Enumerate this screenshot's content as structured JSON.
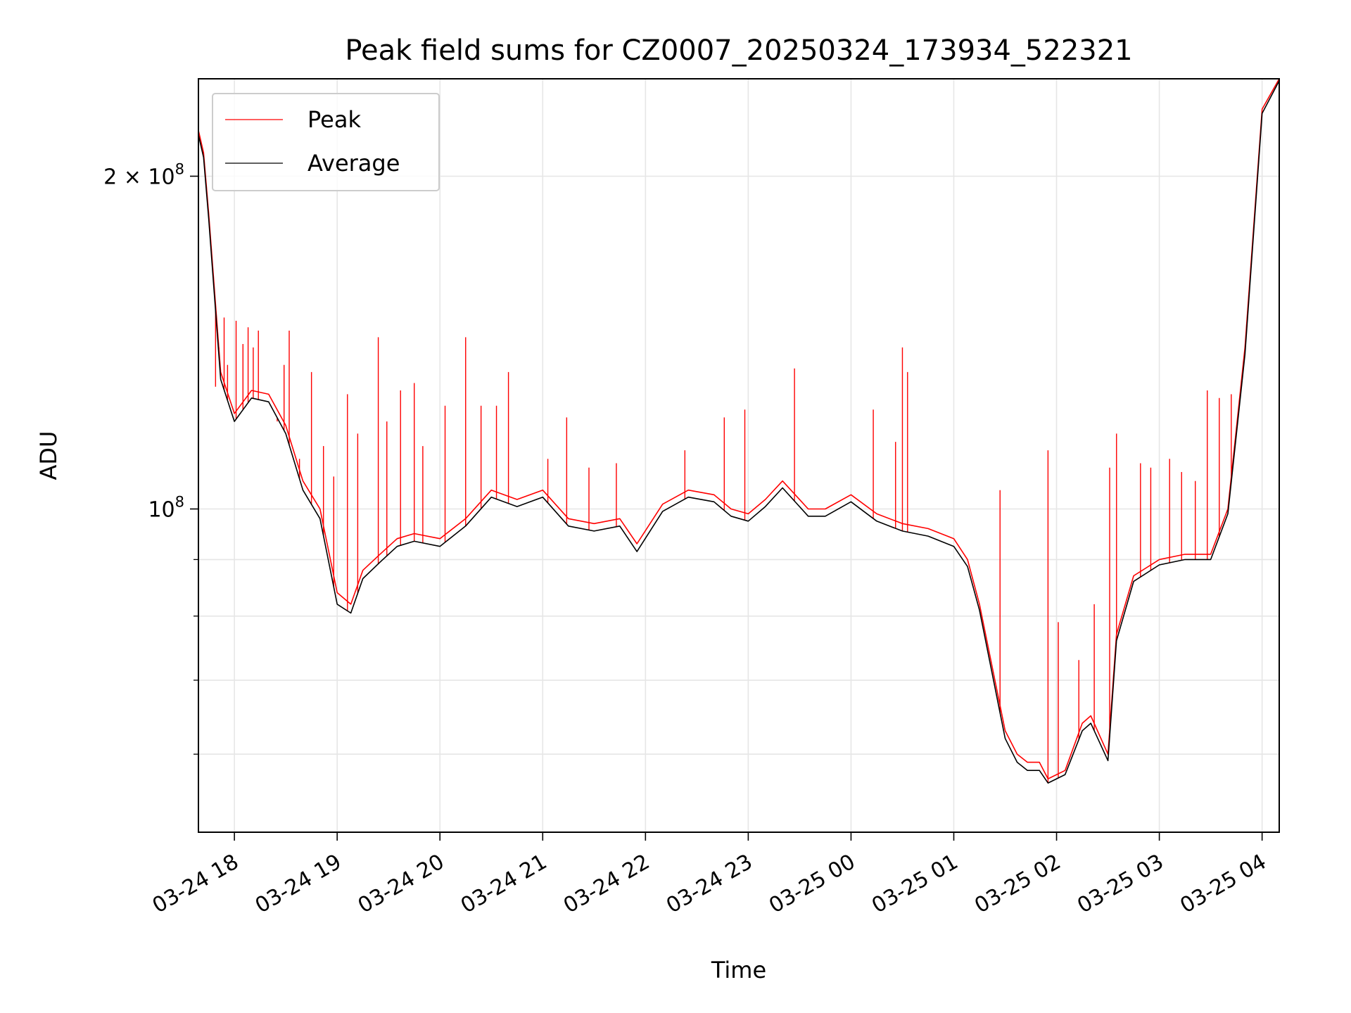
{
  "chart_data": {
    "type": "line",
    "title": "Peak field sums for CZ0007_20250324_173934_522321",
    "xlabel": "Time",
    "ylabel": "ADU",
    "y_scale": "log",
    "xlim": [
      "2025-03-24 17:39",
      "2025-03-25 04:10"
    ],
    "ylim": [
      51000000,
      245000000
    ],
    "x_ticks": [
      "03-24 18",
      "03-24 19",
      "03-24 20",
      "03-24 21",
      "03-24 22",
      "03-24 23",
      "03-25 00",
      "03-25 01",
      "03-25 02",
      "03-25 03",
      "03-25 04"
    ],
    "x_tick_times": [
      "2025-03-24 18:00",
      "2025-03-24 19:00",
      "2025-03-24 20:00",
      "2025-03-24 21:00",
      "2025-03-24 22:00",
      "2025-03-24 23:00",
      "2025-03-25 00:00",
      "2025-03-25 01:00",
      "2025-03-25 02:00",
      "2025-03-25 03:00",
      "2025-03-25 04:00"
    ],
    "y_ticks": [
      {
        "value": 100000000,
        "label": "10",
        "exp": "8"
      },
      {
        "value": 200000000,
        "label": "2 × 10",
        "exp": "8"
      }
    ],
    "y_minor_ticks": [
      60000000,
      70000000,
      80000000,
      90000000
    ],
    "grid": true,
    "legend_position": "top-left",
    "series": [
      {
        "name": "Peak",
        "color": "#ff0000",
        "line_width": 1,
        "x": [
          "2025-03-24 17:39",
          "2025-03-24 17:42",
          "2025-03-24 17:45",
          "2025-03-24 17:52",
          "2025-03-24 18:00",
          "2025-03-24 18:10",
          "2025-03-24 18:20",
          "2025-03-24 18:30",
          "2025-03-24 18:40",
          "2025-03-24 18:50",
          "2025-03-24 19:00",
          "2025-03-24 19:08",
          "2025-03-24 19:15",
          "2025-03-24 19:25",
          "2025-03-24 19:35",
          "2025-03-24 19:45",
          "2025-03-24 20:00",
          "2025-03-24 20:15",
          "2025-03-24 20:30",
          "2025-03-24 20:45",
          "2025-03-24 21:00",
          "2025-03-24 21:15",
          "2025-03-24 21:30",
          "2025-03-24 21:45",
          "2025-03-24 21:55",
          "2025-03-24 22:10",
          "2025-03-24 22:25",
          "2025-03-24 22:40",
          "2025-03-24 22:50",
          "2025-03-24 23:00",
          "2025-03-24 23:10",
          "2025-03-24 23:20",
          "2025-03-24 23:35",
          "2025-03-24 23:45",
          "2025-03-25 00:00",
          "2025-03-25 00:15",
          "2025-03-25 00:30",
          "2025-03-25 00:45",
          "2025-03-25 01:00",
          "2025-03-25 01:08",
          "2025-03-25 01:15",
          "2025-03-25 01:30",
          "2025-03-25 01:37",
          "2025-03-25 01:43",
          "2025-03-25 01:50",
          "2025-03-25 01:55",
          "2025-03-25 02:05",
          "2025-03-25 02:15",
          "2025-03-25 02:20",
          "2025-03-25 02:30",
          "2025-03-25 02:35",
          "2025-03-25 02:45",
          "2025-03-25 03:00",
          "2025-03-25 03:15",
          "2025-03-25 03:30",
          "2025-03-25 03:40",
          "2025-03-25 03:50",
          "2025-03-25 04:00",
          "2025-03-25 04:10"
        ],
        "values": [
          220000000,
          210000000,
          185000000,
          133000000,
          122000000,
          128000000,
          127000000,
          119000000,
          106000000,
          100000000,
          84000000,
          82000000,
          88000000,
          91000000,
          94000000,
          95000000,
          94000000,
          98000000,
          104000000,
          102000000,
          104000000,
          98000000,
          97000000,
          98000000,
          93000000,
          101000000,
          104000000,
          103000000,
          100000000,
          99000000,
          102000000,
          106000000,
          100000000,
          100000000,
          103000000,
          99000000,
          97000000,
          96000000,
          94000000,
          90000000,
          82000000,
          63000000,
          60000000,
          59000000,
          59000000,
          57000000,
          58000000,
          64000000,
          65000000,
          60000000,
          77000000,
          87000000,
          90000000,
          91000000,
          91000000,
          100000000,
          140000000,
          230000000,
          245000000
        ]
      },
      {
        "name": "Average",
        "color": "#000000",
        "line_width": 1,
        "x": [
          "2025-03-24 17:39",
          "2025-03-24 17:42",
          "2025-03-24 17:45",
          "2025-03-24 17:52",
          "2025-03-24 18:00",
          "2025-03-24 18:10",
          "2025-03-24 18:20",
          "2025-03-24 18:30",
          "2025-03-24 18:40",
          "2025-03-24 18:50",
          "2025-03-24 19:00",
          "2025-03-24 19:08",
          "2025-03-24 19:15",
          "2025-03-24 19:25",
          "2025-03-24 19:35",
          "2025-03-24 19:45",
          "2025-03-24 20:00",
          "2025-03-24 20:15",
          "2025-03-24 20:30",
          "2025-03-24 20:45",
          "2025-03-24 21:00",
          "2025-03-24 21:15",
          "2025-03-24 21:30",
          "2025-03-24 21:45",
          "2025-03-24 21:55",
          "2025-03-24 22:10",
          "2025-03-24 22:25",
          "2025-03-24 22:40",
          "2025-03-24 22:50",
          "2025-03-24 23:00",
          "2025-03-24 23:10",
          "2025-03-24 23:20",
          "2025-03-24 23:35",
          "2025-03-24 23:45",
          "2025-03-25 00:00",
          "2025-03-25 00:15",
          "2025-03-25 00:30",
          "2025-03-25 00:45",
          "2025-03-25 01:00",
          "2025-03-25 01:08",
          "2025-03-25 01:15",
          "2025-03-25 01:30",
          "2025-03-25 01:37",
          "2025-03-25 01:43",
          "2025-03-25 01:50",
          "2025-03-25 01:55",
          "2025-03-25 02:05",
          "2025-03-25 02:15",
          "2025-03-25 02:20",
          "2025-03-25 02:30",
          "2025-03-25 02:35",
          "2025-03-25 02:45",
          "2025-03-25 03:00",
          "2025-03-25 03:15",
          "2025-03-25 03:30",
          "2025-03-25 03:40",
          "2025-03-25 03:50",
          "2025-03-25 04:00",
          "2025-03-25 04:10"
        ],
        "values": [
          218000000,
          208000000,
          183000000,
          131000000,
          120000000,
          126000000,
          125000000,
          117000000,
          104000000,
          98000000,
          82000000,
          80500000,
          86500000,
          89500000,
          92500000,
          93500000,
          92500000,
          96500000,
          102500000,
          100500000,
          102500000,
          96500000,
          95500000,
          96500000,
          91500000,
          99500000,
          102500000,
          101500000,
          98500000,
          97500000,
          100500000,
          104500000,
          98500000,
          98500000,
          101500000,
          97500000,
          95500000,
          94500000,
          92500000,
          88700000,
          81000000,
          62000000,
          59000000,
          58000000,
          58000000,
          56500000,
          57500000,
          63000000,
          64000000,
          59200000,
          76000000,
          86000000,
          89000000,
          90000000,
          90000000,
          99000000,
          138000000,
          228000000,
          244000000
        ]
      }
    ],
    "peak_spikes": {
      "x": [
        "2025-03-24 17:49",
        "2025-03-24 17:51",
        "2025-03-24 17:54",
        "2025-03-24 17:56",
        "2025-03-24 18:01",
        "2025-03-24 18:05",
        "2025-03-24 18:08",
        "2025-03-24 18:11",
        "2025-03-24 18:14",
        "2025-03-24 18:25",
        "2025-03-24 18:29",
        "2025-03-24 18:32",
        "2025-03-24 18:38",
        "2025-03-24 18:45",
        "2025-03-24 18:52",
        "2025-03-24 18:58",
        "2025-03-24 19:06",
        "2025-03-24 19:12",
        "2025-03-24 19:24",
        "2025-03-24 19:29",
        "2025-03-24 19:37",
        "2025-03-24 19:45",
        "2025-03-24 19:50",
        "2025-03-24 20:03",
        "2025-03-24 20:15",
        "2025-03-24 20:24",
        "2025-03-24 20:33",
        "2025-03-24 20:40",
        "2025-03-24 21:03",
        "2025-03-24 21:14",
        "2025-03-24 21:27",
        "2025-03-24 21:43",
        "2025-03-24 22:23",
        "2025-03-24 22:46",
        "2025-03-24 22:58",
        "2025-03-24 23:27",
        "2025-03-25 00:13",
        "2025-03-25 00:26",
        "2025-03-25 00:30",
        "2025-03-25 00:33",
        "2025-03-25 01:27",
        "2025-03-25 01:55",
        "2025-03-25 02:01",
        "2025-03-25 02:13",
        "2025-03-25 02:22",
        "2025-03-25 02:31",
        "2025-03-25 02:35",
        "2025-03-25 02:49",
        "2025-03-25 02:55",
        "2025-03-25 03:06",
        "2025-03-25 03:13",
        "2025-03-25 03:21",
        "2025-03-25 03:28",
        "2025-03-25 03:35",
        "2025-03-25 03:42"
      ],
      "values": [
        129000000,
        140000000,
        149000000,
        135000000,
        148000000,
        141000000,
        146000000,
        140000000,
        145000000,
        120000000,
        135000000,
        145000000,
        111000000,
        133000000,
        114000000,
        107000000,
        127000000,
        117000000,
        143000000,
        120000000,
        128000000,
        130000000,
        114000000,
        124000000,
        143000000,
        124000000,
        124000000,
        133000000,
        111000000,
        121000000,
        109000000,
        110000000,
        113000000,
        121000000,
        123000000,
        134000000,
        123000000,
        115000000,
        140000000,
        133000000,
        104000000,
        113000000,
        79000000,
        73000000,
        82000000,
        109000000,
        117000000,
        110000000,
        109000000,
        111000000,
        108000000,
        106000000,
        128000000,
        126000000,
        127000000
      ]
    }
  }
}
